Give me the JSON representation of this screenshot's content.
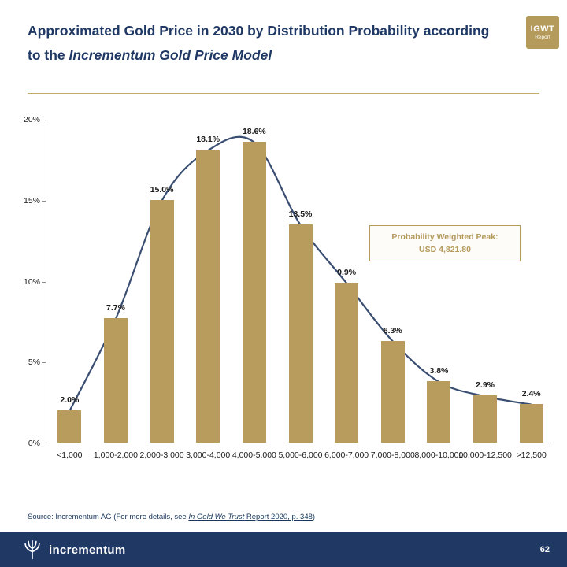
{
  "header": {
    "title_line1": "Approximated Gold Price in 2030 by Distribution Probability according",
    "title_line2_prefix": "to the ",
    "title_line2_italic": "Incrementum Gold Price Model",
    "badge_main": "IGWT",
    "badge_sub": "Report"
  },
  "chart_data": {
    "type": "bar",
    "categories": [
      "<1,000",
      "1,000-2,000",
      "2,000-3,000",
      "3,000-4,000",
      "4,000-5,000",
      "5,000-6,000",
      "6,000-7,000",
      "7,000-8,000",
      "8,000-10,000",
      "10,000-12,500",
      ">12,500"
    ],
    "values": [
      2.0,
      7.7,
      15.0,
      18.1,
      18.6,
      13.5,
      9.9,
      6.3,
      3.8,
      2.9,
      2.4
    ],
    "labels": [
      "2.0%",
      "7.7%",
      "15.0%",
      "18.1%",
      "18.6%",
      "13.5%",
      "9.9%",
      "6.3%",
      "3.8%",
      "2.9%",
      "2.4%"
    ],
    "ylim": [
      0,
      20
    ],
    "yticks": [
      0,
      5,
      10,
      15,
      20
    ],
    "ytick_labels": [
      "0%",
      "5%",
      "10%",
      "15%",
      "20%"
    ],
    "bar_color": "#B79C5E",
    "line_color": "#3A4E72",
    "grid": "off",
    "legend": "none",
    "annotation": {
      "line1": "Probability Weighted Peak:",
      "line2": "USD 4,821.80"
    }
  },
  "footer": {
    "source_prefix": "Source: Incrementum AG (For more details, see ",
    "source_link_italic": "In Gold We Trust",
    "source_link_rest": " Report 2020, p. 348",
    "source_suffix": ")",
    "brand": "incrementum",
    "page": "62"
  }
}
